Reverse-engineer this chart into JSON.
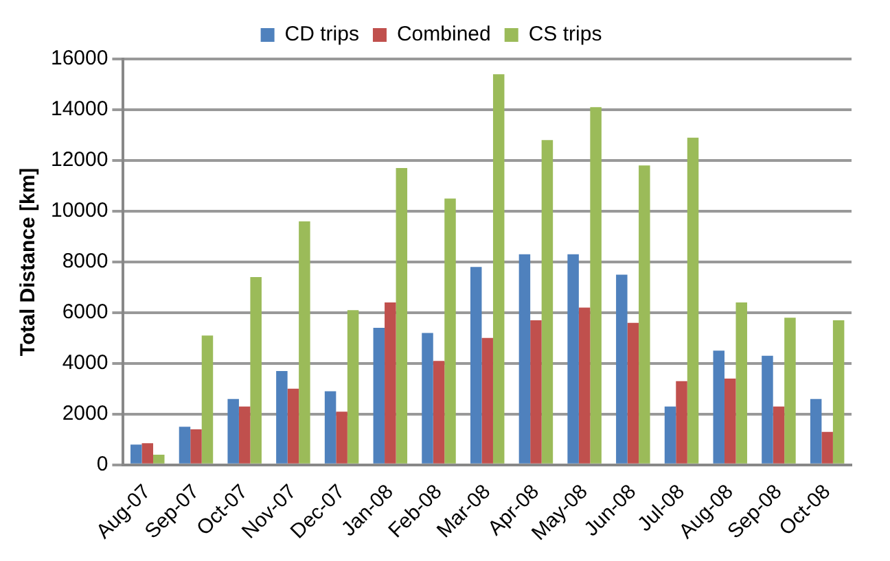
{
  "chart_data": {
    "type": "bar",
    "ylabel": "Total Distance [km]",
    "categories": [
      "Aug-07",
      "Sep-07",
      "Oct-07",
      "Nov-07",
      "Dec-07",
      "Jan-08",
      "Feb-08",
      "Mar-08",
      "Apr-08",
      "May-08",
      "Jun-08",
      "Jul-08",
      "Aug-08",
      "Sep-08",
      "Oct-08"
    ],
    "series": [
      {
        "name": "CD trips",
        "color": "#4f81bd",
        "values": [
          800,
          1500,
          2600,
          3700,
          2900,
          5400,
          5200,
          7800,
          8300,
          8300,
          7500,
          2300,
          4500,
          4300,
          2600
        ]
      },
      {
        "name": "Combined",
        "color": "#c0504d",
        "values": [
          850,
          1400,
          2300,
          3000,
          2100,
          6400,
          4100,
          5000,
          5700,
          6200,
          5600,
          3300,
          3400,
          2300,
          1300
        ]
      },
      {
        "name": "CS trips",
        "color": "#9bbb59",
        "values": [
          400,
          5100,
          7400,
          9600,
          6100,
          11700,
          10500,
          15400,
          12800,
          14100,
          11800,
          12900,
          6400,
          5800,
          5700
        ]
      }
    ],
    "ylim": [
      0,
      16000
    ],
    "yticks": [
      0,
      2000,
      4000,
      6000,
      8000,
      10000,
      12000,
      14000,
      16000
    ],
    "grid": "y",
    "legend": "top"
  }
}
